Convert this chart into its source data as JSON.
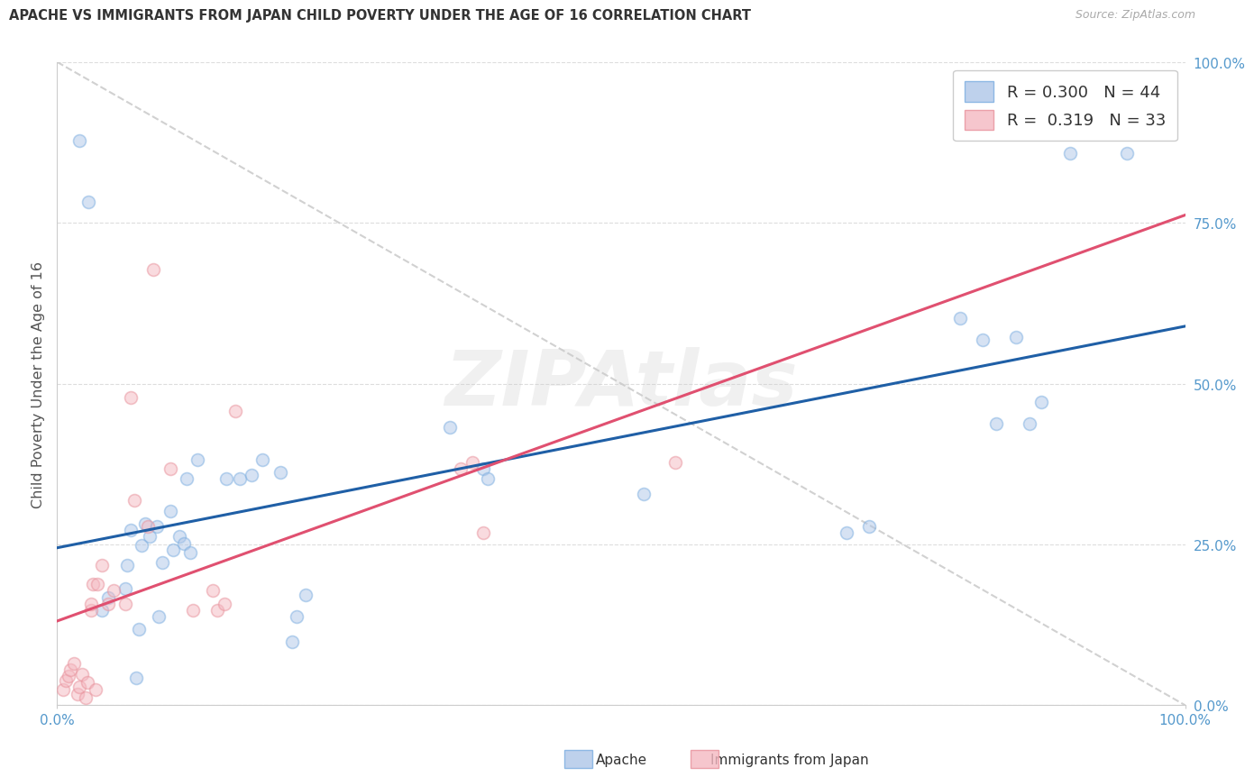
{
  "title": "APACHE VS IMMIGRANTS FROM JAPAN CHILD POVERTY UNDER THE AGE OF 16 CORRELATION CHART",
  "source": "Source: ZipAtlas.com",
  "ylabel": "Child Poverty Under the Age of 16",
  "xlim": [
    0,
    1
  ],
  "ylim": [
    0,
    1
  ],
  "xtick_positions": [
    0.0,
    1.0
  ],
  "xticklabels": [
    "0.0%",
    "100.0%"
  ],
  "ytick_positions": [
    0.0,
    0.25,
    0.5,
    0.75,
    1.0
  ],
  "yticklabels": [
    "0.0%",
    "25.0%",
    "50.0%",
    "75.0%",
    "100.0%"
  ],
  "legend_apache": "R = 0.300   N = 44",
  "legend_japan": "R =  0.319   N = 33",
  "apache_face_color": "#aec6e8",
  "apache_edge_color": "#7aade0",
  "japan_face_color": "#f4b8c1",
  "japan_edge_color": "#e8909a",
  "apache_line_color": "#1f5fa6",
  "japan_line_color": "#e05070",
  "ref_line_color": "#cccccc",
  "watermark": "ZIPAtlas",
  "background_color": "#ffffff",
  "grid_color": "#dddddd",
  "tick_color": "#5599cc",
  "apache_x": [
    0.02,
    0.028,
    0.04,
    0.045,
    0.06,
    0.062,
    0.065,
    0.07,
    0.072,
    0.075,
    0.078,
    0.082,
    0.088,
    0.09,
    0.093,
    0.1,
    0.103,
    0.108,
    0.112,
    0.115,
    0.118,
    0.124,
    0.15,
    0.162,
    0.172,
    0.182,
    0.198,
    0.208,
    0.212,
    0.22,
    0.348,
    0.378,
    0.382,
    0.52,
    0.7,
    0.72,
    0.8,
    0.82,
    0.832,
    0.85,
    0.862,
    0.872,
    0.898,
    0.948
  ],
  "apache_y": [
    0.878,
    0.782,
    0.148,
    0.168,
    0.182,
    0.218,
    0.272,
    0.042,
    0.118,
    0.248,
    0.282,
    0.262,
    0.278,
    0.138,
    0.222,
    0.302,
    0.242,
    0.262,
    0.252,
    0.352,
    0.238,
    0.382,
    0.352,
    0.352,
    0.358,
    0.382,
    0.362,
    0.098,
    0.138,
    0.172,
    0.432,
    0.368,
    0.352,
    0.328,
    0.268,
    0.278,
    0.602,
    0.568,
    0.438,
    0.572,
    0.438,
    0.472,
    0.858,
    0.858
  ],
  "japan_x": [
    0.005,
    0.008,
    0.01,
    0.012,
    0.015,
    0.018,
    0.02,
    0.022,
    0.025,
    0.027,
    0.03,
    0.03,
    0.032,
    0.034,
    0.036,
    0.04,
    0.045,
    0.05,
    0.06,
    0.065,
    0.068,
    0.08,
    0.085,
    0.1,
    0.12,
    0.138,
    0.142,
    0.148,
    0.158,
    0.358,
    0.368,
    0.378,
    0.548
  ],
  "japan_y": [
    0.025,
    0.038,
    0.045,
    0.055,
    0.065,
    0.018,
    0.028,
    0.048,
    0.012,
    0.035,
    0.148,
    0.158,
    0.188,
    0.025,
    0.188,
    0.218,
    0.158,
    0.178,
    0.158,
    0.478,
    0.318,
    0.278,
    0.678,
    0.368,
    0.148,
    0.178,
    0.148,
    0.158,
    0.458,
    0.368,
    0.378,
    0.268,
    0.378
  ],
  "marker_size": 100,
  "marker_alpha": 0.5,
  "marker_linewidth": 1.2
}
